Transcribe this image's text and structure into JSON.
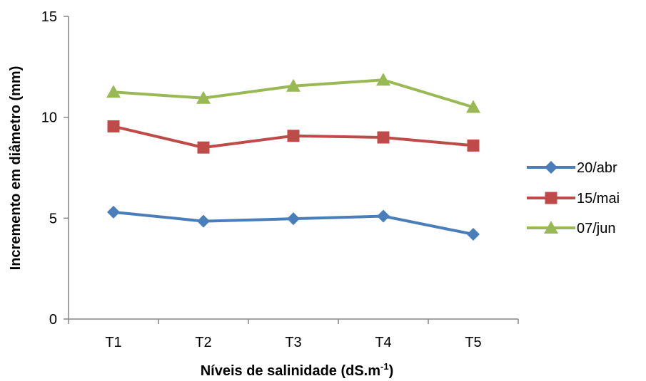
{
  "chart_data": {
    "type": "line",
    "title": "",
    "xlabel": "Níveis de salinidade (dS.m",
    "xlabel_sup": "-1",
    "xlabel_end": ")",
    "ylabel": "Incremento em diâmetro (mm)",
    "categories": [
      "T1",
      "T2",
      "T3",
      "T4",
      "T5"
    ],
    "ylim": [
      0,
      15
    ],
    "yticks": [
      0,
      5,
      10,
      15
    ],
    "grid": false,
    "legend_position": "right",
    "series": [
      {
        "name": "20/abr",
        "values": [
          5.3,
          4.85,
          4.97,
          5.1,
          4.2
        ],
        "color": "#4a7ebb",
        "marker": "diamond"
      },
      {
        "name": "15/mai",
        "values": [
          9.55,
          8.5,
          9.08,
          9.0,
          8.6
        ],
        "color": "#be4b48",
        "marker": "square"
      },
      {
        "name": "07/jun",
        "values": [
          11.25,
          10.95,
          11.55,
          11.85,
          10.5
        ],
        "color": "#98b954",
        "marker": "triangle"
      }
    ]
  }
}
